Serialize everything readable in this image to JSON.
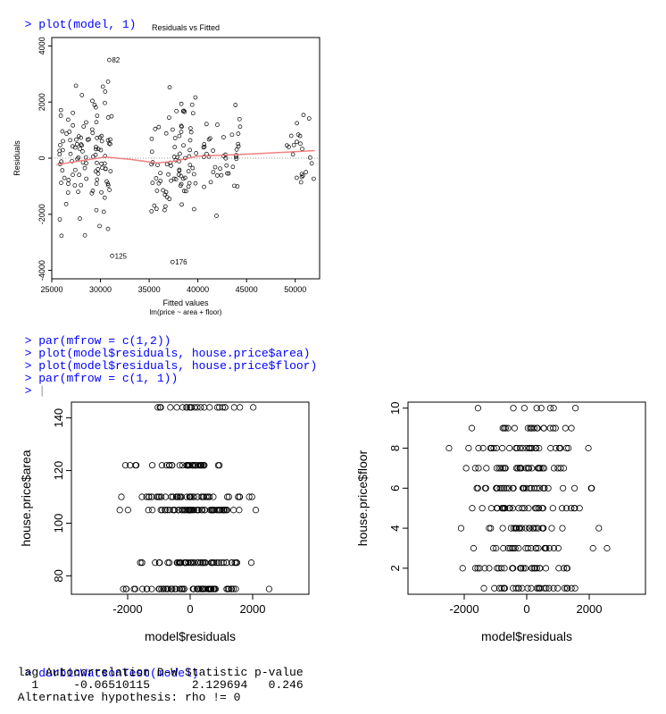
{
  "console": {
    "prompt": ">",
    "cmd_plot1": "plot(model, 1)",
    "cmd_par1": "par(mfrow = c(1,2))",
    "cmd_plot_area": "plot(model$residuals, house.price$area)",
    "cmd_plot_floor": "plot(model$residuals, house.price$floor)",
    "cmd_par2": "par(mfrow = c(1, 1))",
    "cmd_dw": "durbinWatsonTest(model)",
    "dw_header": " lag Autocorrelation D-W Statistic p-value",
    "dw_values": "   1     -0.06510115      2.129694   0.246",
    "dw_alt": " Alternative hypothesis: rho != 0"
  },
  "chart_data": [
    {
      "type": "scatter",
      "title": "Residuals vs Fitted",
      "xlabel": "Fitted values",
      "subtitle": "lm(price ~ area + floor)",
      "ylabel": "Residuals",
      "xlim": [
        25000,
        52500
      ],
      "ylim": [
        -4300,
        4300
      ],
      "xticks": [
        25000,
        30000,
        35000,
        40000,
        45000,
        50000
      ],
      "yticks": [
        -4000,
        -2000,
        0,
        2000,
        4000
      ],
      "annotations": [
        {
          "label": "82",
          "x": 30900,
          "y": 3500
        },
        {
          "label": "125",
          "x": 31200,
          "y": -3480
        },
        {
          "label": "176",
          "x": 37400,
          "y": -3700
        }
      ],
      "smoother": {
        "x": [
          25500,
          28000,
          30500,
          33000,
          35800,
          37500,
          40000,
          43000,
          46000,
          50000,
          52000
        ],
        "y": [
          -230,
          -90,
          40,
          -40,
          -170,
          -110,
          70,
          110,
          160,
          230,
          270
        ]
      },
      "clusters": [
        {
          "center": 28500,
          "spread": 2700,
          "count": 110,
          "sd": 1450
        },
        {
          "center": 37500,
          "spread": 2400,
          "count": 80,
          "sd": 1300
        },
        {
          "center": 42500,
          "spread": 2000,
          "count": 40,
          "sd": 1200
        },
        {
          "center": 50500,
          "spread": 1500,
          "count": 22,
          "sd": 1200
        }
      ]
    },
    {
      "type": "scatter",
      "xlabel": "model$residuals",
      "ylabel": "house.price$area",
      "xlim": [
        -3800,
        3800
      ],
      "ylim": [
        73,
        146
      ],
      "xticks": [
        -2000,
        0,
        2000
      ],
      "yticks": [
        80,
        100,
        120,
        140
      ],
      "y_levels": [
        75,
        85,
        105,
        110,
        122,
        144
      ],
      "level_counts": [
        60,
        50,
        60,
        45,
        35,
        25
      ]
    },
    {
      "type": "scatter",
      "xlabel": "model$residuals",
      "ylabel": "house.price$floor",
      "xlim": [
        -3800,
        3800
      ],
      "ylim": [
        0.7,
        10.3
      ],
      "xticks": [
        -2000,
        0,
        2000
      ],
      "yticks": [
        2,
        4,
        6,
        8,
        10
      ],
      "y_levels": [
        1,
        2,
        3,
        4,
        5,
        6,
        7,
        8,
        9,
        10
      ],
      "level_counts": [
        28,
        30,
        25,
        25,
        30,
        30,
        30,
        30,
        20,
        8
      ]
    }
  ]
}
